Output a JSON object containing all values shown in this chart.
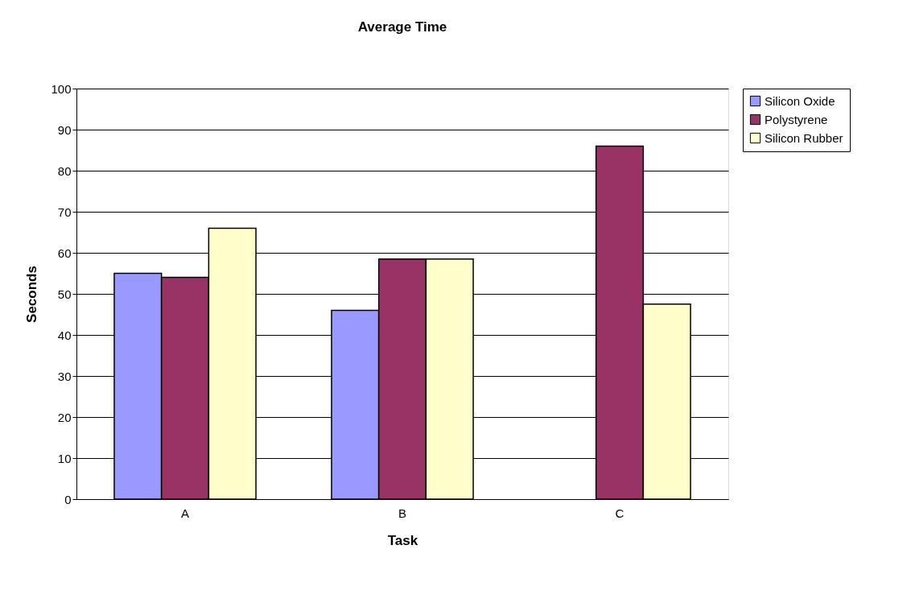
{
  "chart_data": {
    "type": "bar",
    "title": "Average Time",
    "xlabel": "Task",
    "ylabel": "Seconds",
    "categories": [
      "A",
      "B",
      "C"
    ],
    "series": [
      {
        "name": "Silicon Oxide",
        "color": "#9999ff",
        "values": [
          55,
          46,
          null
        ]
      },
      {
        "name": "Polystyrene",
        "color": "#993366",
        "values": [
          54,
          58.5,
          86
        ]
      },
      {
        "name": "Silicon Rubber",
        "color": "#ffffcc",
        "values": [
          66,
          58.5,
          47.5
        ]
      }
    ],
    "ylim": [
      0,
      100
    ],
    "yticks": [
      0,
      10,
      20,
      30,
      40,
      50,
      60,
      70,
      80,
      90,
      100
    ],
    "grid": "y",
    "legend": "right"
  }
}
